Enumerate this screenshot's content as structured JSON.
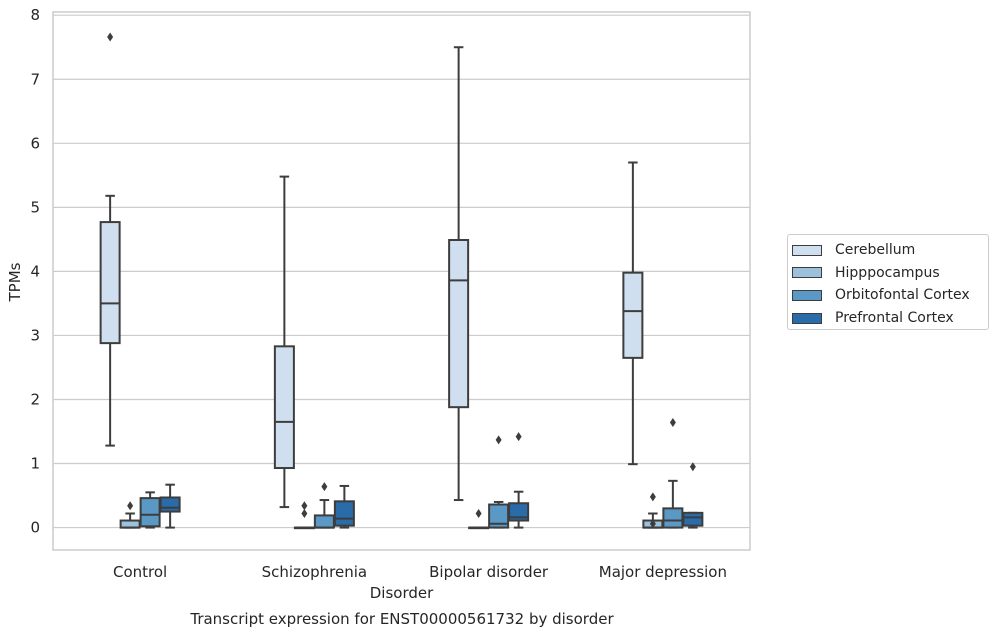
{
  "caption": "Transcript expression for ENST00000561732 by disorder",
  "chart_data": {
    "type": "box",
    "title": "",
    "xlabel": "Disorder",
    "ylabel": "TPMs",
    "ylim": [
      -0.35,
      8.05
    ],
    "yticks": [
      0,
      1,
      2,
      3,
      4,
      5,
      6,
      7,
      8
    ],
    "grid": true,
    "legend_position": "right",
    "categories": [
      "Control",
      "Schizophrenia",
      "Bipolar disorder",
      "Major depression"
    ],
    "series": [
      {
        "name": "Cerebellum",
        "color": "#d0dfef",
        "boxes": [
          {
            "whislo": 1.28,
            "q1": 2.88,
            "med": 3.5,
            "q3": 4.77,
            "whishi": 5.18,
            "fliers": [
              7.66
            ]
          },
          {
            "whislo": 0.32,
            "q1": 0.93,
            "med": 1.65,
            "q3": 2.83,
            "whishi": 5.48,
            "fliers": []
          },
          {
            "whislo": 0.43,
            "q1": 1.88,
            "med": 3.86,
            "q3": 4.49,
            "whishi": 7.5,
            "fliers": []
          },
          {
            "whislo": 0.99,
            "q1": 2.65,
            "med": 3.38,
            "q3": 3.98,
            "whishi": 5.7,
            "fliers": []
          }
        ]
      },
      {
        "name": "Hipppocampus",
        "color": "#9bc1dd",
        "boxes": [
          {
            "whislo": 0.0,
            "q1": 0.0,
            "med": 0.0,
            "q3": 0.11,
            "whishi": 0.22,
            "fliers": [
              0.34
            ]
          },
          {
            "whislo": 0.0,
            "q1": 0.0,
            "med": 0.0,
            "q3": 0.0,
            "whishi": 0.0,
            "fliers": [
              0.22,
              0.34
            ]
          },
          {
            "whislo": 0.0,
            "q1": 0.0,
            "med": 0.0,
            "q3": 0.0,
            "whishi": 0.0,
            "fliers": [
              0.22
            ]
          },
          {
            "whislo": 0.0,
            "q1": 0.0,
            "med": 0.0,
            "q3": 0.11,
            "whishi": 0.22,
            "fliers": [
              0.06,
              0.48
            ]
          }
        ]
      },
      {
        "name": "Orbitofontal Cortex",
        "color": "#5a99c6",
        "boxes": [
          {
            "whislo": 0.0,
            "q1": 0.02,
            "med": 0.2,
            "q3": 0.46,
            "whishi": 0.55,
            "fliers": []
          },
          {
            "whislo": 0.0,
            "q1": 0.0,
            "med": 0.0,
            "q3": 0.19,
            "whishi": 0.43,
            "fliers": [
              0.64
            ]
          },
          {
            "whislo": 0.0,
            "q1": 0.0,
            "med": 0.06,
            "q3": 0.36,
            "whishi": 0.4,
            "fliers": [
              1.37
            ]
          },
          {
            "whislo": 0.0,
            "q1": 0.0,
            "med": 0.11,
            "q3": 0.3,
            "whishi": 0.73,
            "fliers": [
              1.64
            ]
          }
        ]
      },
      {
        "name": "Prefrontal Cortex",
        "color": "#2a6ca9",
        "boxes": [
          {
            "whislo": 0.0,
            "q1": 0.25,
            "med": 0.31,
            "q3": 0.47,
            "whishi": 0.67,
            "fliers": []
          },
          {
            "whislo": 0.0,
            "q1": 0.03,
            "med": 0.14,
            "q3": 0.41,
            "whishi": 0.65,
            "fliers": []
          },
          {
            "whislo": 0.0,
            "q1": 0.11,
            "med": 0.16,
            "q3": 0.38,
            "whishi": 0.56,
            "fliers": [
              1.42
            ]
          },
          {
            "whislo": 0.0,
            "q1": 0.03,
            "med": 0.16,
            "q3": 0.23,
            "whishi": 0.23,
            "fliers": [
              0.95
            ]
          }
        ]
      }
    ]
  }
}
